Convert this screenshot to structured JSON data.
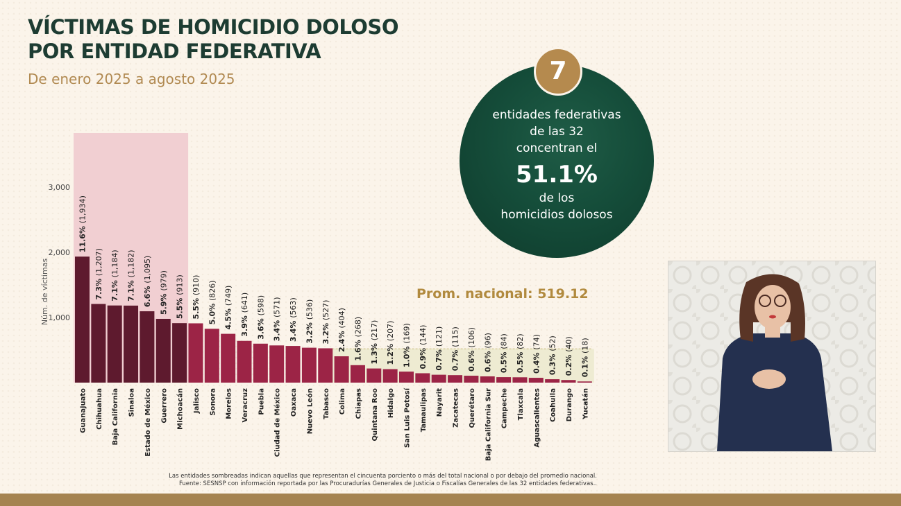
{
  "header": {
    "title_line1": "VÍCTIMAS DE HOMICIDIO DOLOSO",
    "title_line2": "POR ENTIDAD FEDERATIVA",
    "subtitle": "De enero 2025 a agosto 2025"
  },
  "callout": {
    "badge": "7",
    "line1": "entidades federativas",
    "line2": "de las 32",
    "line3": "concentran el",
    "percent": "51.1%",
    "line4": "de los",
    "line5": "homicidios dolosos"
  },
  "notes": {
    "shading": "Las entidades sombreadas indican aquellas que representan el cincuenta porciento o más del total nacional o por debajo del promedio nacional.",
    "source": "Fuente: SESNSP con información reportada por las Procuradurías Generales de Justicia o Fiscalías Generales de las 32 entidades federativas.."
  },
  "colors": {
    "bar_top": "#5e1a2e",
    "bar_rest": "#9c2446",
    "shade_top": "#f1cfd2",
    "shade_below_avg": "#eeebd2",
    "circle": "#154d3a",
    "badge": "#b58a4e",
    "title": "#1d3c32",
    "subtitle": "#b18a52"
  },
  "chart_data": {
    "type": "bar",
    "ylabel": "Núm. de víctimas",
    "ylim": [
      0,
      3000
    ],
    "yticks": [
      {
        "value": 1000,
        "label": "1,000"
      },
      {
        "value": 2000,
        "label": "2,000"
      },
      {
        "value": 3000,
        "label": "3,000"
      }
    ],
    "average": 519.12,
    "average_label": "Prom. nacional: 519.12",
    "top_group_count": 7,
    "categories": [
      "Guanajuato",
      "Chihuahua",
      "Baja California",
      "Sinaloa",
      "Estado de México",
      "Guerrero",
      "Michoacán",
      "Jalisco",
      "Sonora",
      "Morelos",
      "Veracruz",
      "Puebla",
      "Ciudad de México",
      "Oaxaca",
      "Nuevo León",
      "Tabasco",
      "Colima",
      "Chiapas",
      "Quintana Roo",
      "Hidalgo",
      "San Luis Potosí",
      "Tamaulipas",
      "Nayarit",
      "Zacatecas",
      "Querétaro",
      "Baja California Sur",
      "Campeche",
      "Tlaxcala",
      "Aguascalientes",
      "Coahuila",
      "Durango",
      "Yucatán"
    ],
    "values": [
      1934,
      1207,
      1184,
      1182,
      1095,
      979,
      913,
      910,
      826,
      749,
      641,
      598,
      571,
      563,
      536,
      527,
      404,
      268,
      217,
      207,
      169,
      144,
      121,
      115,
      106,
      96,
      84,
      82,
      74,
      52,
      40,
      18
    ],
    "pct_labels": [
      "11.6%",
      "7.3%",
      "7.1%",
      "7.1%",
      "6.6%",
      "5.9%",
      "5.5%",
      "5.5%",
      "5.0%",
      "4.5%",
      "3.9%",
      "3.6%",
      "3.4%",
      "3.4%",
      "3.2%",
      "3.2%",
      "2.4%",
      "1.6%",
      "1.3%",
      "1.2%",
      "1.0%",
      "0.9%",
      "0.7%",
      "0.7%",
      "0.6%",
      "0.6%",
      "0.5%",
      "0.5%",
      "0.4%",
      "0.3%",
      "0.2%",
      "0.1%"
    ],
    "count_labels": [
      "(1,934)",
      "(1,207)",
      "(1,184)",
      "(1,182)",
      "(1,095)",
      "(979)",
      "(913)",
      "(910)",
      "(826)",
      "(749)",
      "(641)",
      "(598)",
      "(571)",
      "(563)",
      "(536)",
      "(527)",
      "(404)",
      "(268)",
      "(217)",
      "(207)",
      "(169)",
      "(144)",
      "(121)",
      "(115)",
      "(106)",
      "(96)",
      "(84)",
      "(82)",
      "(74)",
      "(52)",
      "(40)",
      "(18)"
    ]
  }
}
